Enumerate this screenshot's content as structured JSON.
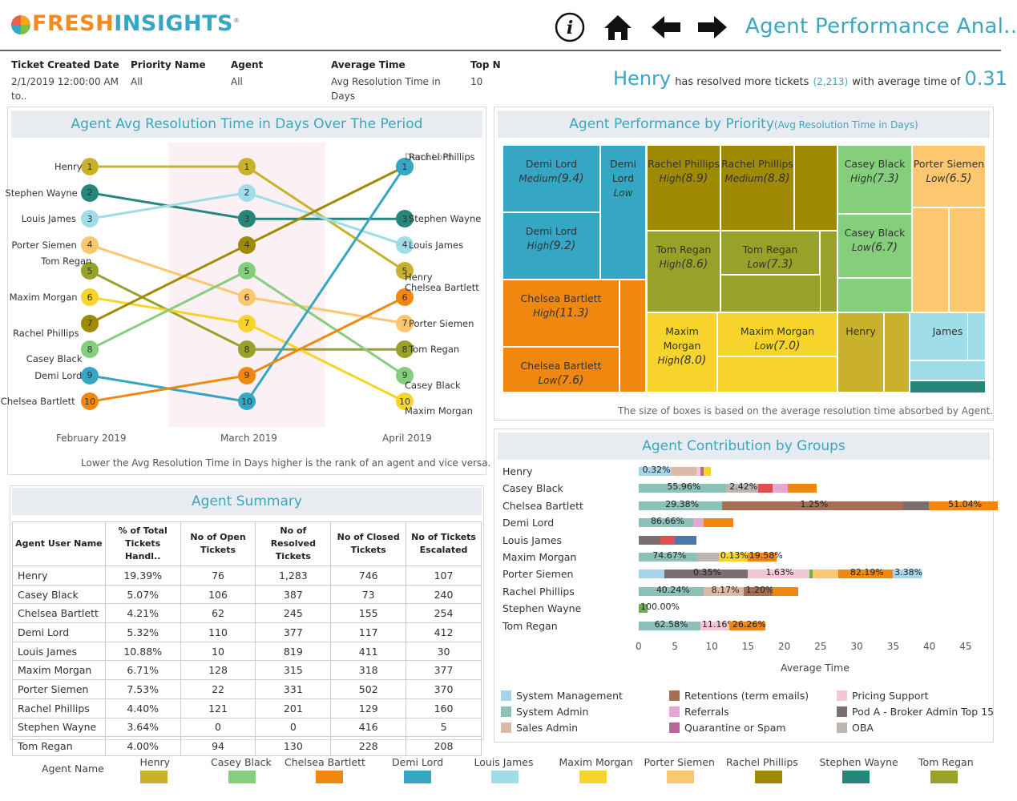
{
  "header": {
    "logo_text_a": "FRESH",
    "logo_text_b": "INSIGHTS",
    "logo_reg": "®",
    "title": "Agent Performance Anal.."
  },
  "icons": [
    "info-icon",
    "home-icon",
    "arrow-left-icon",
    "arrow-right-icon"
  ],
  "filters": [
    {
      "label": "Ticket Created Date",
      "value": "2/1/2019 12:00:00 AM to.."
    },
    {
      "label": "Priority Name",
      "value": "All"
    },
    {
      "label": "Agent",
      "value": "All"
    },
    {
      "label": "Average Time",
      "value": "Avg Resolution Time in Days"
    },
    {
      "label": "Top N",
      "value": "10"
    }
  ],
  "kpi": {
    "agent": "Henry",
    "text1": "has resolved more tickets",
    "count": "(2,213)",
    "text2": "with average time of",
    "value": "0.31"
  },
  "colors": {
    "Henry": "#c9b12e",
    "Casey Black": "#85cf7c",
    "Chelsea Bartlett": "#f0870e",
    "Demi Lord": "#35a6c4",
    "Louis James": "#9fdde8",
    "Maxim Morgan": "#f6d42b",
    "Porter Siemen": "#fcc76f",
    "Rachel Phillips": "#a08a03",
    "Stephen Wayne": "#24877a",
    "Tom Regan": "#98a228"
  },
  "chart_data": [
    {
      "type": "line",
      "title": "Agent Avg Resolution Time in Days Over The Period",
      "x": [
        "February 2019",
        "March 2019",
        "April 2019"
      ],
      "series": [
        {
          "name": "Henry",
          "values": [
            1,
            1,
            5
          ]
        },
        {
          "name": "Stephen Wayne",
          "values": [
            2,
            3,
            3
          ]
        },
        {
          "name": "Louis James",
          "values": [
            3,
            2,
            4
          ]
        },
        {
          "name": "Porter Siemen",
          "values": [
            4,
            6,
            7
          ]
        },
        {
          "name": "Tom Regan",
          "values": [
            5,
            8,
            8
          ]
        },
        {
          "name": "Maxim Morgan",
          "values": [
            6,
            7,
            10
          ]
        },
        {
          "name": "Rachel Phillips",
          "values": [
            7,
            4,
            1
          ]
        },
        {
          "name": "Casey Black",
          "values": [
            8,
            5,
            9
          ]
        },
        {
          "name": "Demi Lord",
          "values": [
            9,
            10,
            1
          ]
        },
        {
          "name": "Chelsea Bartlett",
          "values": [
            10,
            9,
            6
          ]
        }
      ],
      "left_labels": [
        "Henry",
        "Stephen Wayne",
        "Louis James",
        "Porter Siemen",
        "Tom Regan",
        "Maxim Morgan",
        "Rachel Phillips",
        "Casey Black",
        "Demi Lord",
        "Chelsea Bartlett"
      ],
      "right_labels": [
        "Rachel Phillips",
        "Stephen Wayne",
        "Louis James",
        "Henry",
        "Chelsea Bartlett",
        "Porter Siemen",
        "Tom Regan",
        "Casey Black",
        "Maxim Morgan"
      ],
      "right_top_overlap": "Demi Lord",
      "note": "Lower the Avg Resolution Time in Days higher is the rank of an agent and vice versa."
    },
    {
      "type": "treemap",
      "title": "Agent Performance by Priority",
      "subtitle": "(Avg Resolution Time in Days)",
      "cells": [
        {
          "agent": "Demi Lord",
          "priority": "Medium",
          "value": "(9.4)"
        },
        {
          "agent": "Demi Lord",
          "priority": "Low",
          "value": ""
        },
        {
          "agent": "Demi Lord",
          "priority": "High",
          "value": "(9.2)"
        },
        {
          "agent": "Chelsea Bartlett",
          "priority": "High",
          "value": "(11.3)"
        },
        {
          "agent": "Chelsea Bartlett",
          "priority": "Low",
          "value": "(7.6)"
        },
        {
          "agent": "Rachel Phillips",
          "priority": "High",
          "value": "(8.9)"
        },
        {
          "agent": "Rachel Phillips",
          "priority": "Medium",
          "value": "(8.8)"
        },
        {
          "agent": "Tom Regan",
          "priority": "High",
          "value": "(8.6)"
        },
        {
          "agent": "Tom Regan",
          "priority": "Low",
          "value": "(7.3)"
        },
        {
          "agent": "Maxim Morgan",
          "priority": "High",
          "value": "(8.0)"
        },
        {
          "agent": "Maxim Morgan",
          "priority": "Low",
          "value": "(7.0)"
        },
        {
          "agent": "Casey Black",
          "priority": "High",
          "value": "(7.3)"
        },
        {
          "agent": "Casey Black",
          "priority": "Low",
          "value": "(6.7)"
        },
        {
          "agent": "Porter Siemen",
          "priority": "Low",
          "value": "(6.5)"
        },
        {
          "agent": "Henry",
          "priority": "",
          "value": ""
        },
        {
          "agent": "James",
          "priority": "",
          "value": ""
        }
      ],
      "note": "The size of boxes is based on the average resolution time absorbed by Agent."
    },
    {
      "type": "bar",
      "title": "Agent Contribution by Groups",
      "xlabel": "Average Time",
      "xlim": [
        0,
        45
      ],
      "xticks": [
        0,
        5,
        10,
        15,
        20,
        25,
        30,
        35,
        40,
        45
      ],
      "categories": [
        "Henry",
        "Casey Black",
        "Chelsea Bartlett",
        "Demi Lord",
        "Louis James",
        "Maxim Morgan",
        "Porter Siemen",
        "Rachel Phillips",
        "Stephen Wayne",
        "Tom Regan"
      ],
      "segments": [
        [
          {
            "g": "System Management",
            "v": 4.5,
            "l": "0.32%"
          },
          {
            "g": "Sales Admin",
            "v": 3.5
          },
          {
            "g": "Pricing Support",
            "v": 0.5
          },
          {
            "g": "Quarantine or Spam",
            "v": 0.5
          },
          {
            "g": "Maxim",
            "v": 1.0,
            "c": "#f6d42b"
          }
        ],
        [
          {
            "g": "System Admin",
            "v": 12,
            "l": "55.96%"
          },
          {
            "g": "OBA",
            "v": 4.5,
            "l": "2.42%"
          },
          {
            "g": "Red",
            "v": 2,
            "c": "#e34d4d"
          },
          {
            "g": "Referrals",
            "v": 2
          },
          {
            "g": "Orange",
            "v": 4,
            "c": "#f0870e"
          }
        ],
        [
          {
            "g": "System Admin",
            "v": 11.5,
            "l": "29.38%"
          },
          {
            "g": "Retentions (term emails)",
            "v": 25,
            "l": "1.25%"
          },
          {
            "g": "Pod A - Broker Admin Top 15",
            "v": 3.5
          },
          {
            "g": "Orange",
            "v": 9.5,
            "c": "#f0870e",
            "l": "51.04%"
          }
        ],
        [
          {
            "g": "System Admin",
            "v": 7.5,
            "l": "86.66%"
          },
          {
            "g": "Referrals",
            "v": 1.5
          },
          {
            "g": "Orange",
            "v": 4,
            "c": "#f0870e"
          }
        ],
        [
          {
            "g": "Pod A - Broker Admin Top 15",
            "v": 3
          },
          {
            "g": "Red",
            "v": 2,
            "c": "#e34d4d"
          },
          {
            "g": "Blue",
            "v": 3,
            "c": "#4b77a9"
          }
        ],
        [
          {
            "g": "System Admin",
            "v": 8,
            "l": "74.67%"
          },
          {
            "g": "OBA",
            "v": 3
          },
          {
            "g": "Yellow",
            "v": 4,
            "c": "#f6d42b",
            "l": "0.13%"
          },
          {
            "g": "Orange",
            "v": 4,
            "c": "#f0870e",
            "l": "19.58%"
          }
        ],
        [
          {
            "g": "System Management",
            "v": 3.5
          },
          {
            "g": "Pod A - Broker Admin Top 15",
            "v": 11.5,
            "l": "0.35%"
          },
          {
            "g": "Pricing Support",
            "v": 8.5,
            "l": "1.63%"
          },
          {
            "g": "Green",
            "v": 0.5,
            "c": "#6db04f"
          },
          {
            "g": "Porter",
            "v": 3.5,
            "c": "#fcc76f"
          },
          {
            "g": "Orange",
            "v": 7.5,
            "c": "#f0870e",
            "l": "82.19%"
          },
          {
            "g": "System Management",
            "v": 4,
            "l": "3.38%"
          }
        ],
        [
          {
            "g": "System Admin",
            "v": 9,
            "l": "40.24%"
          },
          {
            "g": "Sales Admin",
            "v": 5.5,
            "l": "8.17%"
          },
          {
            "g": "Retentions (term emails)",
            "v": 4,
            "l": "1.20%"
          },
          {
            "g": "Orange",
            "v": 3.5,
            "c": "#f0870e"
          }
        ],
        [
          {
            "g": "Green",
            "v": 1.2,
            "c": "#6db04f",
            "l": "100.00%"
          }
        ],
        [
          {
            "g": "System Admin",
            "v": 8.5,
            "l": "62.58%"
          },
          {
            "g": "Pricing Support",
            "v": 4,
            "l": "11.16%"
          },
          {
            "g": "Orange",
            "v": 5,
            "c": "#f0870e",
            "l": "26.26%"
          }
        ]
      ],
      "legend": [
        {
          "name": "System Management",
          "color": "#a6d4ec"
        },
        {
          "name": "Retentions (term emails)",
          "color": "#a66e52"
        },
        {
          "name": "Pricing Support",
          "color": "#f5c6d6"
        },
        {
          "name": "System Admin",
          "color": "#8cc1b8"
        },
        {
          "name": "Referrals",
          "color": "#e6a8d2"
        },
        {
          "name": "Pod A - Broker Admin Top 15",
          "color": "#7a6e6e"
        },
        {
          "name": "Sales Admin",
          "color": "#dfb9a8"
        },
        {
          "name": "Quarantine or Spam",
          "color": "#b5669a"
        },
        {
          "name": "OBA",
          "color": "#bdb6b0"
        }
      ]
    },
    {
      "type": "table",
      "title": "Agent Summary",
      "columns": [
        "Agent User Name",
        "% of Total Tickets Handl..",
        "No of Open Tickets",
        "No of Resolved Tickets",
        "No of Closed Tickets",
        "No of Tickets Escalated"
      ],
      "rows": [
        [
          "Henry",
          "19.39%",
          "76",
          "1,283",
          "746",
          "107"
        ],
        [
          "Casey Black",
          "5.07%",
          "106",
          "387",
          "73",
          "240"
        ],
        [
          "Chelsea Bartlett",
          "4.21%",
          "62",
          "245",
          "155",
          "254"
        ],
        [
          "Demi Lord",
          "5.32%",
          "110",
          "377",
          "117",
          "412"
        ],
        [
          "Louis James",
          "10.88%",
          "10",
          "819",
          "411",
          "30"
        ],
        [
          "Maxim Morgan",
          "6.71%",
          "128",
          "315",
          "318",
          "377"
        ],
        [
          "Porter Siemen",
          "7.53%",
          "22",
          "331",
          "502",
          "370"
        ],
        [
          "Rachel Phillips",
          "4.40%",
          "121",
          "201",
          "129",
          "160"
        ],
        [
          "Stephen Wayne",
          "3.64%",
          "0",
          "0",
          "416",
          "5"
        ],
        [
          "Tom Regan",
          "4.00%",
          "94",
          "130",
          "228",
          "208"
        ]
      ]
    }
  ],
  "bottom_legend": {
    "title": "Agent Name",
    "items": [
      "Henry",
      "Casey Black",
      "Chelsea Bartlett",
      "Demi Lord",
      "Louis James",
      "Maxim Morgan",
      "Porter Siemen",
      "Rachel Phillips",
      "Stephen Wayne",
      "Tom Regan"
    ]
  }
}
